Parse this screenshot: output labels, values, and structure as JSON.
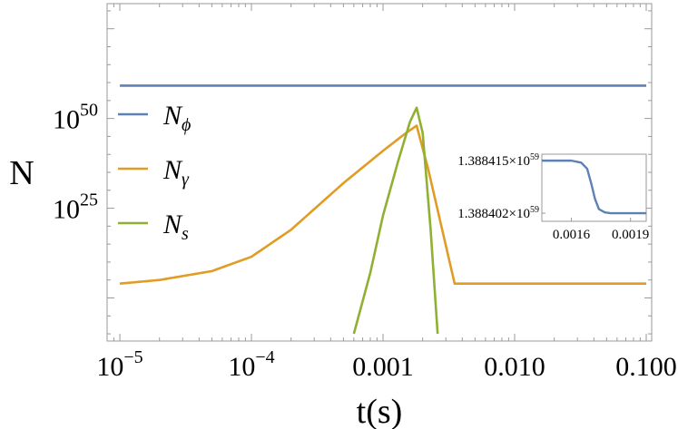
{
  "chart_data": {
    "type": "line",
    "title": "",
    "xlabel": "t(s)",
    "ylabel": "N",
    "x_scale": "log",
    "y_scale": "log",
    "xlim": [
      8e-06,
      0.11
    ],
    "ylim": [
      1e-12,
      1e+82
    ],
    "x_ticks": [
      {
        "value": 1e-05,
        "base": "10",
        "exp": "−5",
        "text": ""
      },
      {
        "value": 0.0001,
        "base": "10",
        "exp": "−4",
        "text": ""
      },
      {
        "value": 0.001,
        "base": "",
        "exp": "",
        "text": "0.001"
      },
      {
        "value": 0.01,
        "base": "",
        "exp": "",
        "text": "0.010"
      },
      {
        "value": 0.1,
        "base": "",
        "exp": "",
        "text": "0.100"
      }
    ],
    "y_ticks": [
      {
        "value": 1e+25,
        "base": "10",
        "exp": "25"
      },
      {
        "value": 1e+50,
        "base": "10",
        "exp": "50"
      }
    ],
    "grid": false,
    "legend_position": "left",
    "series": [
      {
        "name": "N",
        "sub": "ϕ",
        "color": "#5e81b5",
        "points": [
          [
            1e-05,
            1.3884e+59
          ],
          [
            0.1,
            1.3884e+59
          ]
        ]
      },
      {
        "name": "N",
        "sub": "γ",
        "color": "#e19c24",
        "points": [
          [
            1e-05,
            10000.0
          ],
          [
            2e-05,
            100000.0
          ],
          [
            5e-05,
            30000000.0
          ],
          [
            0.0001,
            300000000000.0
          ],
          [
            0.0002,
            1e+19
          ],
          [
            0.0005,
            1e+32
          ],
          [
            0.001,
            1e+41
          ],
          [
            0.0015,
            1e+46
          ],
          [
            0.0018,
            1e+48
          ],
          [
            0.0022,
            1e+36
          ],
          [
            0.0035,
            10000.0
          ],
          [
            0.1,
            10000.0
          ]
        ]
      },
      {
        "name": "N",
        "sub": "s",
        "color": "#8fb032",
        "points": [
          [
            0.0006,
            1e-10
          ],
          [
            0.0008,
            10000000.0
          ],
          [
            0.001,
            1e+23
          ],
          [
            0.0013,
            1e+38
          ],
          [
            0.0016,
            1e+49
          ],
          [
            0.0018,
            1e+53
          ],
          [
            0.002,
            1e+46
          ],
          [
            0.0023,
            1e+19
          ],
          [
            0.0026,
            1e-10
          ]
        ]
      }
    ],
    "inset": {
      "type": "line",
      "xlim": [
        0.00145,
        0.00198
      ],
      "ylim": [
        1.3884e+59,
        1.3884166e+59
      ],
      "x_ticks": [
        {
          "value": 0.0016,
          "text": "0.0016"
        },
        {
          "value": 0.0019,
          "text": "0.0019"
        }
      ],
      "y_ticks": [
        {
          "value": 1.388415e+59,
          "base": "1.388415×10",
          "exp": "59"
        },
        {
          "value": 1.388402e+59,
          "base": "1.388402×10",
          "exp": "59"
        }
      ],
      "series": [
        {
          "name": "N",
          "sub": "ϕ",
          "color": "#5e81b5",
          "points": [
            [
              0.00145,
              1.388415e+59
            ],
            [
              0.0016,
              1.388415e+59
            ],
            [
              0.00165,
              1.3884145e+59
            ],
            [
              0.00168,
              1.388413e+59
            ],
            [
              0.0017,
              1.3884095e+59
            ],
            [
              0.00172,
              1.3884055e+59
            ],
            [
              0.00174,
              1.388403e+59
            ],
            [
              0.00177,
              1.3884022e+59
            ],
            [
              0.0018,
              1.388402e+59
            ],
            [
              0.00198,
              1.388402e+59
            ]
          ]
        }
      ]
    }
  }
}
